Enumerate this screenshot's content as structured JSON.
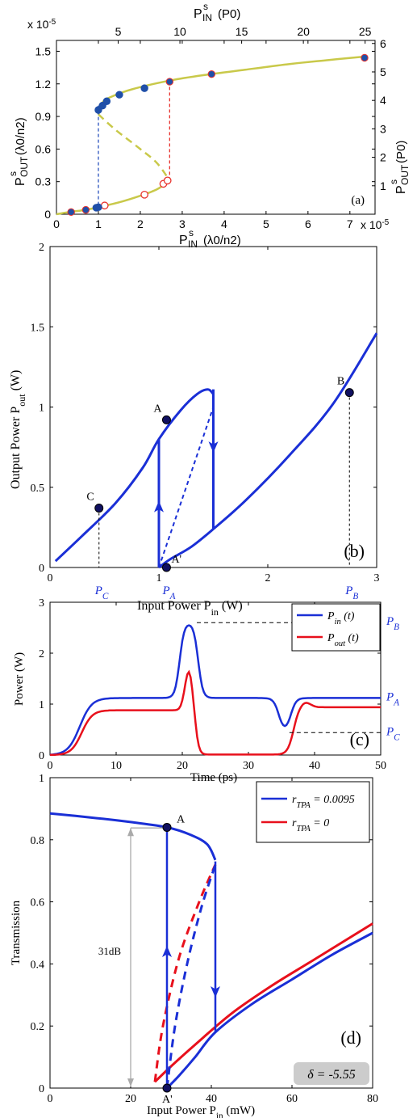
{
  "chart_data": [
    {
      "panel": "(a)",
      "type": "scatter",
      "xlabel_main": "P",
      "xlabel_sup": "s",
      "xlabel_sub": "IN",
      "xlabel_unit": "(λ0/n2)",
      "x_exponent": "x 10",
      "x_exponent_power": "-5",
      "y_exponent": "x 10",
      "y_exponent_power": "-5",
      "ylabel_main": "P",
      "ylabel_sup": "s",
      "ylabel_sub": "OUT",
      "ylabel_unit": "(λ0/n2)",
      "top_xlabel_main": "P",
      "top_xlabel_sup": "s",
      "top_xlabel_sub": "IN",
      "top_xlabel_unit": "(P0)",
      "right_ylabel_main": "P",
      "right_ylabel_sup": "s",
      "right_ylabel_sub": "OUT",
      "right_ylabel_unit": "(P0)",
      "xlim": [
        0,
        7.6
      ],
      "ylim": [
        0,
        1.6
      ],
      "xticks": [
        "0",
        "1",
        "2",
        "3",
        "4",
        "5",
        "6",
        "7"
      ],
      "yticks": [
        "0",
        "0.3",
        "0.6",
        "0.9",
        "1.2",
        "1.5"
      ],
      "top_ticks": [
        "5",
        "10",
        "15",
        "20",
        "25"
      ],
      "right_ticks": [
        "1",
        "2",
        "3",
        "4",
        "5",
        "6"
      ],
      "curve_color": "#c9c94a",
      "upper_branch": [
        [
          1.0,
          0.92
        ],
        [
          1.1,
          1.03
        ],
        [
          1.3,
          1.08
        ],
        [
          1.8,
          1.15
        ],
        [
          2.7,
          1.23
        ],
        [
          3.5,
          1.28
        ],
        [
          4.5,
          1.33
        ],
        [
          5.5,
          1.38
        ],
        [
          6.5,
          1.42
        ],
        [
          7.3,
          1.45
        ]
      ],
      "lower_branch": [
        [
          0,
          0
        ],
        [
          0.3,
          0.02
        ],
        [
          0.7,
          0.04
        ],
        [
          1.0,
          0.065
        ],
        [
          1.5,
          0.11
        ],
        [
          2.0,
          0.17
        ],
        [
          2.4,
          0.23
        ],
        [
          2.7,
          0.31
        ]
      ],
      "unstable_branch": [
        [
          1.0,
          0.92
        ],
        [
          1.4,
          0.78
        ],
        [
          2.0,
          0.6
        ],
        [
          2.4,
          0.47
        ],
        [
          2.7,
          0.31
        ]
      ],
      "jump_up": {
        "x": 2.7,
        "from": 0.31,
        "to": 1.22,
        "color": "#e8322d"
      },
      "jump_down": {
        "x": 1.0,
        "from": 1.0,
        "to": 0.065,
        "color": "#2a52be"
      },
      "blue_points": [
        [
          0.35,
          0.02
        ],
        [
          0.7,
          0.04
        ],
        [
          0.95,
          0.06
        ],
        [
          1.0,
          0.065
        ],
        [
          1.0,
          0.96
        ],
        [
          1.1,
          1.0
        ],
        [
          1.2,
          1.04
        ],
        [
          1.5,
          1.1
        ],
        [
          2.1,
          1.16
        ],
        [
          2.7,
          1.22
        ],
        [
          3.7,
          1.29
        ],
        [
          7.35,
          1.44
        ]
      ],
      "open_red_points": [
        [
          1.15,
          0.08
        ],
        [
          2.1,
          0.18
        ],
        [
          2.55,
          0.28
        ],
        [
          2.65,
          0.31
        ]
      ],
      "label": "(a)"
    },
    {
      "panel": "(b)",
      "type": "line",
      "xlabel": "Input Power P",
      "xlabel_sub": "in",
      "xlabel_unit": "(W)",
      "ylabel": "Output Power P",
      "ylabel_sub": "out",
      "ylabel_unit": "(W)",
      "xlim": [
        0,
        3
      ],
      "ylim": [
        0,
        2
      ],
      "xticks": [
        "0",
        "1",
        "2",
        "3"
      ],
      "yticks": [
        "0",
        "0.5",
        "1",
        "1.5",
        "2"
      ],
      "color": "#1a2fd6",
      "upper_branch": [
        [
          0.05,
          0.04
        ],
        [
          0.3,
          0.2
        ],
        [
          0.6,
          0.4
        ],
        [
          0.85,
          0.62
        ],
        [
          1.0,
          0.8
        ],
        [
          1.2,
          0.98
        ],
        [
          1.35,
          1.08
        ],
        [
          1.45,
          1.11
        ],
        [
          1.5,
          1.08
        ]
      ],
      "lower_branch": [
        [
          1.0,
          0.0
        ],
        [
          1.1,
          0.05
        ],
        [
          1.3,
          0.13
        ],
        [
          1.5,
          0.24
        ],
        [
          1.8,
          0.42
        ],
        [
          2.2,
          0.7
        ],
        [
          2.6,
          1.02
        ],
        [
          3.0,
          1.46
        ]
      ],
      "unstable": [
        [
          1.0,
          0.0
        ],
        [
          1.25,
          0.5
        ],
        [
          1.5,
          1.0
        ]
      ],
      "vertical_up_x": 1.0,
      "vertical_down_x": 1.5,
      "points": [
        {
          "name": "C",
          "x": 0.45,
          "y": 0.37
        },
        {
          "name": "A",
          "x": 1.07,
          "y": 0.92
        },
        {
          "name": "A'",
          "x": 1.07,
          "y": 0.0
        },
        {
          "name": "B",
          "x": 2.75,
          "y": 1.09
        }
      ],
      "x_markers": [
        {
          "main": "P",
          "sub": "C",
          "x": 0.45
        },
        {
          "main": "P",
          "sub": "A",
          "x": 1.07
        },
        {
          "main": "P",
          "sub": "B",
          "x": 2.75
        }
      ],
      "label": "(b)"
    },
    {
      "panel": "(c)",
      "type": "line",
      "xlabel": "Time (ps)",
      "ylabel": "Power (W)",
      "xlim": [
        0,
        50
      ],
      "ylim": [
        0,
        3
      ],
      "xticks": [
        "0",
        "10",
        "20",
        "30",
        "40",
        "50"
      ],
      "yticks": [
        "0",
        "1",
        "2",
        "3"
      ],
      "series": [
        {
          "name_main": "P",
          "name_sub": "in",
          "name_tail": "(t)",
          "color": "#1a2fd6"
        },
        {
          "name_main": "P",
          "name_sub": "out",
          "name_tail": "(t)",
          "color": "#e8101c"
        }
      ],
      "right_labels": [
        {
          "main": "P",
          "sub": "B",
          "y": 2.6
        },
        {
          "main": "P",
          "sub": "A",
          "y": 1.12
        },
        {
          "main": "P",
          "sub": "C",
          "y": 0.44
        }
      ],
      "label": "(c)"
    },
    {
      "panel": "(d)",
      "type": "line",
      "xlabel": "Input Power P",
      "xlabel_sub": "in",
      "xlabel_unit": "(mW)",
      "ylabel": "Transmission",
      "xlim": [
        0,
        80
      ],
      "ylim": [
        0,
        1
      ],
      "xticks": [
        "0",
        "20",
        "40",
        "60",
        "80"
      ],
      "yticks": [
        "0",
        "0.2",
        "0.4",
        "0.6",
        "0.8",
        "1"
      ],
      "series": [
        {
          "name_main": "r",
          "name_sub": "TPA",
          "name_tail": "= 0.0095",
          "color": "#1a2fd6"
        },
        {
          "name_main": "r",
          "name_sub": "TPA",
          "name_tail": "= 0",
          "color": "#e8101c"
        }
      ],
      "blue_upper": [
        [
          0,
          0.885
        ],
        [
          10,
          0.872
        ],
        [
          20,
          0.857
        ],
        [
          29,
          0.84
        ],
        [
          35,
          0.815
        ],
        [
          39,
          0.785
        ],
        [
          41,
          0.735
        ]
      ],
      "blue_lower": [
        [
          29,
          0.0
        ],
        [
          32,
          0.04
        ],
        [
          36,
          0.1
        ],
        [
          41,
          0.18
        ],
        [
          50,
          0.27
        ],
        [
          60,
          0.35
        ],
        [
          70,
          0.43
        ],
        [
          80,
          0.5
        ]
      ],
      "blue_unstable": [
        [
          29,
          0.0
        ],
        [
          31,
          0.2
        ],
        [
          34,
          0.4
        ],
        [
          37.5,
          0.58
        ],
        [
          41,
          0.72
        ]
      ],
      "red_lower": [
        [
          26,
          0.02
        ],
        [
          30,
          0.07
        ],
        [
          36,
          0.14
        ],
        [
          45,
          0.24
        ],
        [
          55,
          0.33
        ],
        [
          65,
          0.41
        ],
        [
          80,
          0.53
        ]
      ],
      "red_unstable": [
        [
          26,
          0.02
        ],
        [
          28,
          0.2
        ],
        [
          32,
          0.42
        ],
        [
          37,
          0.6
        ],
        [
          41,
          0.72
        ]
      ],
      "vertical_up_x": 29,
      "vertical_down_x": 41,
      "points": [
        {
          "name": "A",
          "x": 29,
          "y": 0.84
        },
        {
          "name": "A'",
          "x": 29,
          "y": 0.0
        }
      ],
      "annotation": "31dB",
      "delta_label": "δ = -5.55",
      "label": "(d)"
    }
  ]
}
